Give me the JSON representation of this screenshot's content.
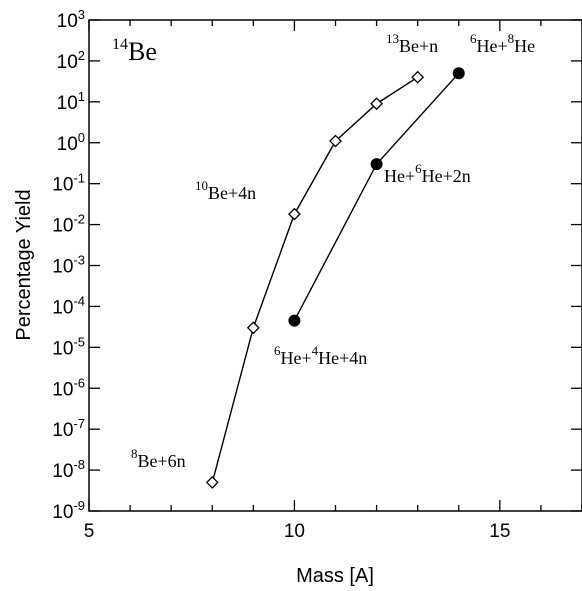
{
  "chart_data": {
    "type": "scatter",
    "xlabel": "Mass [A]",
    "ylabel": "Percentage Yield",
    "xlim": [
      5,
      17
    ],
    "ylim": [
      1e-09,
      1000
    ],
    "yscale": "log",
    "x_ticks": [
      5,
      10,
      15
    ],
    "y_ticks": [
      {
        "base": "10",
        "exp": "3"
      },
      {
        "base": "10",
        "exp": "2"
      },
      {
        "base": "10",
        "exp": "1"
      },
      {
        "base": "10",
        "exp": "0"
      },
      {
        "base": "10",
        "exp": "-1"
      },
      {
        "base": "10",
        "exp": "-2"
      },
      {
        "base": "10",
        "exp": "-3"
      },
      {
        "base": "10",
        "exp": "-4"
      },
      {
        "base": "10",
        "exp": "-5"
      },
      {
        "base": "10",
        "exp": "-6"
      },
      {
        "base": "10",
        "exp": "-7"
      },
      {
        "base": "10",
        "exp": "-8"
      },
      {
        "base": "10",
        "exp": "-9"
      }
    ],
    "grid": false,
    "series": [
      {
        "marker": "open-diamond",
        "x": [
          8,
          9,
          10,
          11,
          12,
          13
        ],
        "y": [
          5e-09,
          3e-05,
          0.018,
          1.1,
          9,
          40
        ]
      },
      {
        "marker": "filled-circle",
        "x": [
          10,
          12,
          14
        ],
        "y": [
          4.5e-05,
          0.3,
          50
        ]
      }
    ],
    "annotations": [
      {
        "parts": [
          {
            "t": "14",
            "sup": true
          },
          {
            "t": "Be"
          }
        ],
        "big": true
      },
      {
        "parts": [
          {
            "t": "13",
            "sup": true
          },
          {
            "t": "Be+n"
          }
        ]
      },
      {
        "parts": [
          {
            "t": "6",
            "sup": true
          },
          {
            "t": "He+"
          },
          {
            "t": "8",
            "sup": true
          },
          {
            "t": "He"
          }
        ]
      },
      {
        "parts": [
          {
            "t": "He+"
          },
          {
            "t": "6",
            "sup": true
          },
          {
            "t": "He+2n"
          }
        ]
      },
      {
        "parts": [
          {
            "t": "10",
            "sup": true
          },
          {
            "t": "Be+4n"
          }
        ]
      },
      {
        "parts": [
          {
            "t": "6",
            "sup": true
          },
          {
            "t": "He+"
          },
          {
            "t": "4",
            "sup": true
          },
          {
            "t": "He+4n"
          }
        ]
      },
      {
        "parts": [
          {
            "t": "8",
            "sup": true
          },
          {
            "t": "Be+6n"
          }
        ]
      }
    ]
  }
}
